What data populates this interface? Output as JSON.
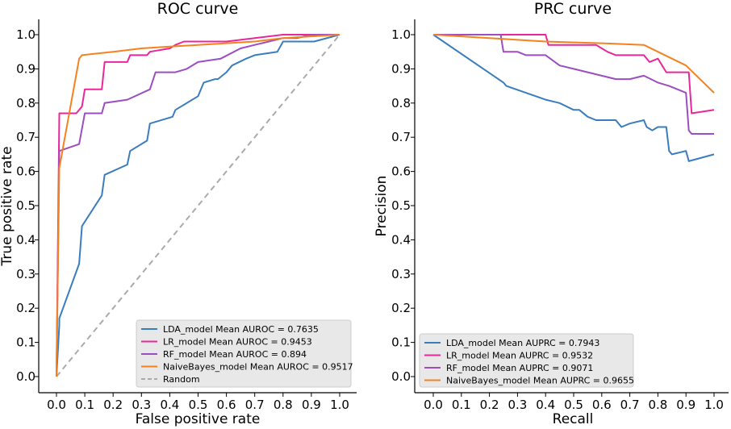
{
  "chart_data": [
    {
      "type": "line",
      "title": "ROC curve",
      "xlabel": "False positive rate",
      "ylabel": "True positive rate",
      "xlim": [
        0,
        1
      ],
      "ylim": [
        0,
        1
      ],
      "ticks": [
        "0.0",
        "0.1",
        "0.2",
        "0.3",
        "0.4",
        "0.5",
        "0.6",
        "0.7",
        "0.8",
        "0.9",
        "1.0"
      ],
      "legend_location": "lower-right",
      "series": [
        {
          "name": "LDA_model Mean AUROC = 0.7635",
          "color": "#3a7dbf",
          "x": [
            0,
            0.01,
            0.01,
            0.08,
            0.09,
            0.16,
            0.17,
            0.25,
            0.26,
            0.32,
            0.33,
            0.41,
            0.42,
            0.5,
            0.52,
            0.56,
            0.57,
            0.6,
            0.62,
            0.67,
            0.7,
            0.78,
            0.8,
            0.91,
            1.0
          ],
          "y": [
            0,
            0.15,
            0.17,
            0.33,
            0.44,
            0.53,
            0.59,
            0.62,
            0.66,
            0.69,
            0.74,
            0.76,
            0.78,
            0.82,
            0.86,
            0.87,
            0.87,
            0.89,
            0.91,
            0.93,
            0.94,
            0.95,
            0.98,
            0.98,
            1.0
          ]
        },
        {
          "name": "LR_model Mean AUROC = 0.9453",
          "color": "#e8279a",
          "x": [
            0,
            0.01,
            0.07,
            0.09,
            0.1,
            0.16,
            0.17,
            0.2,
            0.25,
            0.26,
            0.32,
            0.33,
            0.4,
            0.42,
            0.45,
            0.5,
            0.6,
            0.7,
            0.8,
            0.9,
            1.0
          ],
          "y": [
            0,
            0.77,
            0.77,
            0.79,
            0.84,
            0.84,
            0.92,
            0.92,
            0.92,
            0.94,
            0.94,
            0.95,
            0.96,
            0.97,
            0.98,
            0.98,
            0.98,
            0.99,
            1.0,
            1.0,
            1.0
          ],
          "note": "the x and y arrays of every series hold data values"
        },
        {
          "name": "RF_model Mean AUROC = 0.894",
          "color": "#9b4dc2",
          "x": [
            0,
            0.01,
            0.08,
            0.1,
            0.16,
            0.17,
            0.25,
            0.33,
            0.35,
            0.42,
            0.46,
            0.5,
            0.58,
            0.65,
            0.7,
            0.75,
            0.8,
            0.85,
            0.9,
            1.0
          ],
          "y": [
            0,
            0.66,
            0.68,
            0.77,
            0.77,
            0.8,
            0.81,
            0.84,
            0.89,
            0.89,
            0.9,
            0.92,
            0.93,
            0.96,
            0.97,
            0.98,
            0.99,
            0.99,
            1.0,
            1.0
          ]
        },
        {
          "name": "NaiveBayes_model Mean AUROC = 0.9517",
          "color": "#f5821f",
          "x": [
            0,
            0.01,
            0.08,
            0.09,
            0.2,
            0.3,
            0.4,
            0.5,
            0.6,
            0.7,
            0.8,
            0.9,
            1.0
          ],
          "y": [
            0,
            0.61,
            0.93,
            0.94,
            0.95,
            0.96,
            0.965,
            0.97,
            0.975,
            0.98,
            0.99,
            0.995,
            1.0
          ]
        },
        {
          "name": "Random",
          "color": "#aaaaaa",
          "dashed": true,
          "x": [
            0,
            1
          ],
          "y": [
            0,
            1
          ]
        }
      ]
    },
    {
      "type": "line",
      "title": "PRC curve",
      "xlabel": "Recall",
      "ylabel": "Precision",
      "xlim": [
        0,
        1
      ],
      "ylim": [
        0,
        1
      ],
      "ticks": [
        "0.0",
        "0.1",
        "0.2",
        "0.3",
        "0.4",
        "0.5",
        "0.6",
        "0.7",
        "0.8",
        "0.9",
        "1.0"
      ],
      "legend_location": "lower-right",
      "series": [
        {
          "name": "LDA_model Mean AUPRC = 0.7943",
          "color": "#3a7dbf",
          "x": [
            0,
            0.25,
            0.26,
            0.4,
            0.45,
            0.5,
            0.52,
            0.55,
            0.58,
            0.6,
            0.65,
            0.67,
            0.7,
            0.75,
            0.76,
            0.78,
            0.8,
            0.83,
            0.84,
            0.85,
            0.9,
            0.91,
            1.0
          ],
          "y": [
            1.0,
            0.86,
            0.85,
            0.81,
            0.8,
            0.78,
            0.78,
            0.76,
            0.75,
            0.75,
            0.75,
            0.73,
            0.74,
            0.75,
            0.73,
            0.72,
            0.73,
            0.73,
            0.66,
            0.65,
            0.66,
            0.63,
            0.65
          ]
        },
        {
          "name": "LR_model Mean AUPRC = 0.9532",
          "color": "#e8279a",
          "x": [
            0,
            0.2,
            0.25,
            0.3,
            0.4,
            0.41,
            0.5,
            0.58,
            0.6,
            0.62,
            0.65,
            0.7,
            0.75,
            0.77,
            0.8,
            0.83,
            0.85,
            0.9,
            0.91,
            0.92,
            1.0
          ],
          "y": [
            1.0,
            1.0,
            1.0,
            1.0,
            1.0,
            0.97,
            0.97,
            0.97,
            0.96,
            0.95,
            0.94,
            0.94,
            0.94,
            0.92,
            0.93,
            0.89,
            0.89,
            0.89,
            0.89,
            0.77,
            0.78
          ]
        },
        {
          "name": "RF_model Mean AUPRC = 0.9071",
          "color": "#9b4dc2",
          "x": [
            0,
            0.24,
            0.25,
            0.3,
            0.33,
            0.35,
            0.4,
            0.45,
            0.5,
            0.55,
            0.6,
            0.65,
            0.7,
            0.75,
            0.8,
            0.84,
            0.9,
            0.91,
            0.92,
            1.0
          ],
          "y": [
            1.0,
            1.0,
            0.95,
            0.95,
            0.94,
            0.94,
            0.94,
            0.91,
            0.9,
            0.89,
            0.88,
            0.87,
            0.87,
            0.88,
            0.86,
            0.85,
            0.83,
            0.72,
            0.71,
            0.71
          ]
        },
        {
          "name": "NaiveBayes_model Mean AUPRC = 0.9655",
          "color": "#f5821f",
          "x": [
            0,
            0.2,
            0.4,
            0.6,
            0.75,
            0.8,
            0.9,
            1.0
          ],
          "y": [
            1.0,
            0.99,
            0.98,
            0.975,
            0.97,
            0.95,
            0.91,
            0.83
          ]
        }
      ]
    }
  ]
}
